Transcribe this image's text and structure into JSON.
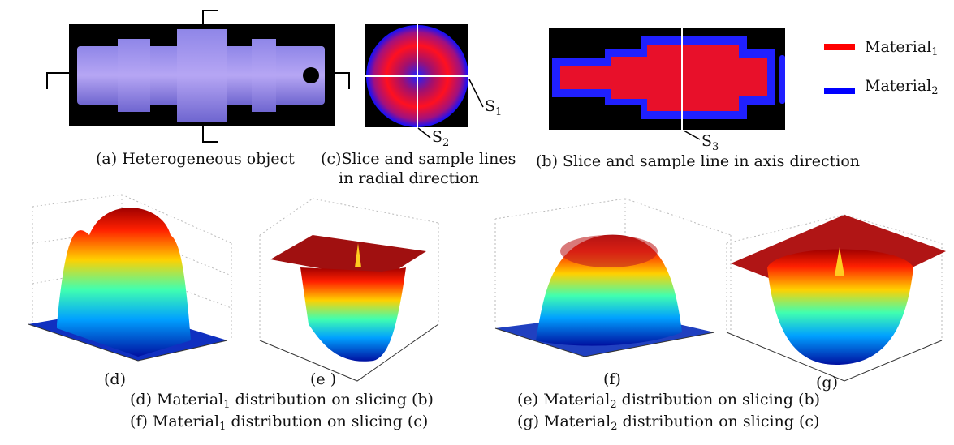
{
  "panels": {
    "a": "(a) Heterogeneous object",
    "c_line1": "(c)Slice and sample lines",
    "c_line2": "in radial direction",
    "b": "(b) Slice and sample line in axis direction"
  },
  "legend": [
    {
      "text": "Material",
      "sub": "1"
    },
    {
      "text": "Material",
      "sub": "2"
    }
  ],
  "sample_lines": [
    {
      "text": "S",
      "sub": "1"
    },
    {
      "text": "S",
      "sub": "2"
    },
    {
      "text": "S",
      "sub": "3"
    }
  ],
  "plot_labels": [
    "(d)",
    "(e )",
    "(f)",
    "(g)"
  ],
  "captions": [
    {
      "prefix": "(d) Material",
      "sub": "1",
      "suffix": " distribution on slicing (b)"
    },
    {
      "prefix": "(f) Material",
      "sub": "1",
      "suffix": " distribution on slicing (c)"
    },
    {
      "prefix": "(e) Material",
      "sub": "2",
      "suffix": " distribution on slicing (b)"
    },
    {
      "prefix": "(g) Material",
      "sub": "2",
      "suffix": " distribution on slicing (c)"
    }
  ]
}
